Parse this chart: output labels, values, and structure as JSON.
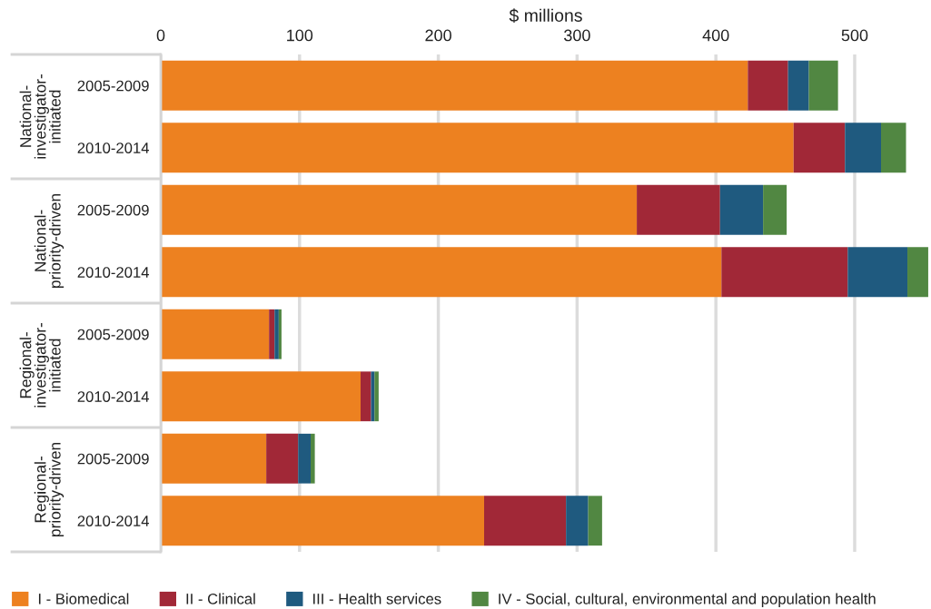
{
  "chart_data": {
    "type": "bar",
    "orientation": "horizontal",
    "stacked": true,
    "xlabel": "$ millions",
    "categories": [
      "2005-2009",
      "2010-2014",
      "2005-2009",
      "2010-2014",
      "2005-2009",
      "2010-2014",
      "2005-2009",
      "2010-2014"
    ],
    "annotations": [
      "National-\ninvestigator-\ninitiated",
      "National-\npriority-driven",
      "Regional-\ninvestigator-\ninitiated",
      "Regional-\npriority-driven"
    ],
    "series": [
      {
        "name": "I - Biomedical",
        "color": "#ed8120",
        "values": [
          423,
          456,
          343,
          404,
          78,
          144,
          76,
          233
        ]
      },
      {
        "name": "II - Clinical",
        "color": "#a12837",
        "values": [
          29,
          37,
          60,
          91,
          4,
          7.5,
          23,
          59
        ]
      },
      {
        "name": "III - Health services",
        "color": "#1f5a7f",
        "values": [
          15,
          26,
          31,
          43,
          3,
          2.5,
          9,
          16
        ]
      },
      {
        "name": "IV - Social, cultural, environmental and population health",
        "color": "#518742",
        "values": [
          21,
          18,
          17,
          15,
          2,
          3,
          3,
          10
        ]
      }
    ],
    "xlim": [
      0,
      555
    ],
    "xticks": [
      0,
      100,
      200,
      300,
      400,
      500
    ],
    "grid": "x",
    "legend": "bottom"
  }
}
